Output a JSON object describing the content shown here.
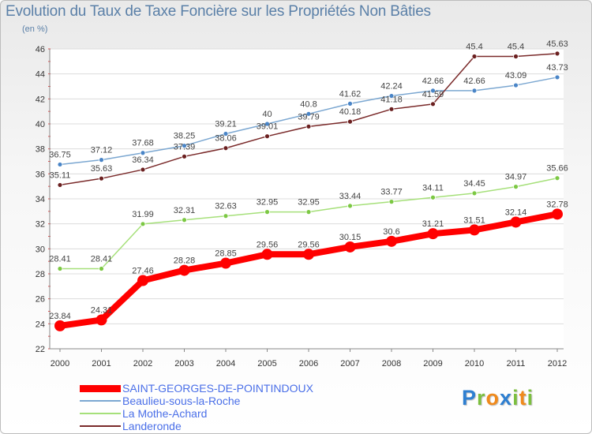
{
  "title": "Evolution du Taux de Taxe Foncière sur les Propriétés Non Bâties",
  "unit": "(en %)",
  "chart_data": {
    "type": "line",
    "title": "Evolution du Taux de Taxe Foncière sur les Propriétés Non Bâties",
    "ylabel": "(en %)",
    "xlabel": "",
    "ylim": [
      22,
      46
    ],
    "yticks": [
      22,
      24,
      26,
      28,
      30,
      32,
      34,
      36,
      38,
      40,
      42,
      44,
      46
    ],
    "categories": [
      "2000",
      "2001",
      "2002",
      "2003",
      "2004",
      "2005",
      "2006",
      "2007",
      "2008",
      "2009",
      "2010",
      "2011",
      "2012"
    ],
    "series": [
      {
        "name": "SAINT-GEORGES-DE-POINTINDOUX",
        "color": "#ff0000",
        "markerColor": "#ff0000",
        "emphasis": true,
        "values": [
          23.84,
          24.31,
          27.46,
          28.28,
          28.85,
          29.56,
          29.56,
          30.15,
          30.6,
          31.21,
          31.51,
          32.14,
          32.78
        ]
      },
      {
        "name": "Beaulieu-sous-la-Roche",
        "color": "#7ba7d1",
        "markerColor": "#4a85c7",
        "values": [
          36.75,
          37.12,
          37.68,
          38.25,
          39.21,
          40,
          40.8,
          41.62,
          42.24,
          42.66,
          42.66,
          43.09,
          43.73
        ]
      },
      {
        "name": "La Mothe-Achard",
        "color": "#a6e07a",
        "markerColor": "#7cc843",
        "values": [
          28.41,
          28.41,
          31.99,
          32.31,
          32.63,
          32.95,
          32.95,
          33.44,
          33.77,
          34.11,
          34.45,
          34.97,
          35.66
        ]
      },
      {
        "name": "Landeronde",
        "color": "#7a2a2a",
        "markerColor": "#6b2020",
        "values": [
          35.11,
          35.63,
          36.34,
          37.39,
          38.06,
          39.01,
          39.79,
          40.18,
          41.18,
          41.59,
          45.4,
          45.4,
          45.63
        ]
      }
    ],
    "legend": "bottom-left"
  },
  "logo": {
    "letters": [
      "P",
      "r",
      "o",
      "x",
      "i",
      "t",
      "i"
    ],
    "colors": [
      "#2e7fd1",
      "#7cbf3f",
      "#f08a1c",
      "#2e7fd1",
      "#7cbf3f",
      "#f08a1c",
      "#7cbf3f"
    ]
  }
}
